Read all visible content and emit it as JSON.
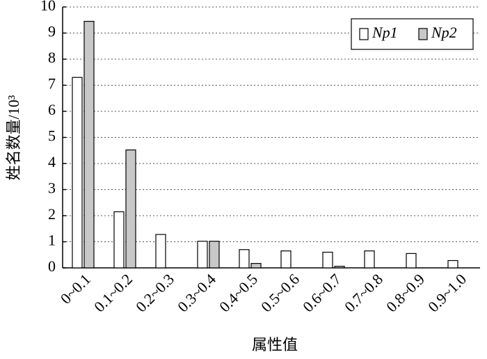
{
  "chart_data": {
    "type": "bar",
    "y_label": "姓名数量/10³",
    "x_label": "属性值",
    "categories": [
      "0~0.1",
      "0.1~0.2",
      "0.2~0.3",
      "0.3~0.4",
      "0.4~0.5",
      "0.5~0.6",
      "0.6~0.7",
      "0.7~0.8",
      "0.8~0.9",
      "0.9~1.0"
    ],
    "series": [
      {
        "name": "Np1",
        "color": "#ffffff",
        "values": [
          7.3,
          2.15,
          1.28,
          1.02,
          0.7,
          0.65,
          0.6,
          0.65,
          0.55,
          0.28
        ]
      },
      {
        "name": "Np2",
        "color": "#c8c8c8",
        "values": [
          9.45,
          4.52,
          0,
          1.02,
          0.17,
          0,
          0.06,
          0,
          0,
          0
        ]
      }
    ],
    "ylim": [
      0,
      10
    ],
    "yticks": [
      0,
      1,
      2,
      3,
      4,
      5,
      6,
      7,
      8,
      9,
      10
    ],
    "grid": true,
    "legend": "top-right"
  }
}
